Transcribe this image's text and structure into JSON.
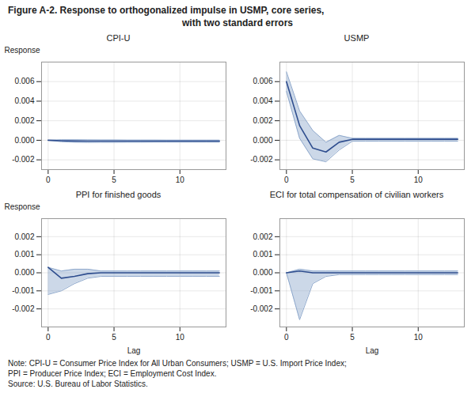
{
  "title": "Figure A-2. Response to orthogonalized impulse in USMP, core series,",
  "subtitle": "with two standard errors",
  "notes": [
    "Note: CPI-U = Consumer Price Index for All Urban Consumers; USMP = U.S. Import Price Index;",
    "PPI = Producer Price Index; ECI = Employment Cost Index.",
    "Source: U.S. Bureau of Labor Statistics."
  ],
  "chart_data": [
    {
      "type": "line",
      "title": "CPI-U",
      "ylabel": "Response",
      "grid": true,
      "x": [
        0,
        1,
        2,
        3,
        4,
        5,
        6,
        7,
        8,
        9,
        10,
        11,
        12,
        13
      ],
      "xlim": [
        -0.5,
        13.5
      ],
      "xticks": [
        0,
        5,
        10
      ],
      "ylim": [
        -0.003,
        0.008
      ],
      "yticks": [
        -0.002,
        {
          "value": 0,
          "label": "0.000"
        },
        0.002,
        0.004,
        0.006
      ],
      "series": [
        {
          "type": "area",
          "color": "#8ea8cc",
          "upper": [
            0.0,
            5e-05,
            5e-05,
            4e-05,
            3e-05,
            3e-05,
            2e-05,
            2e-05,
            2e-05,
            1e-05,
            1e-05,
            1e-05,
            1e-05,
            1e-05
          ],
          "lower": [
            0.0,
            -0.00015,
            -0.0002,
            -0.00022,
            -0.00021,
            -0.00021,
            -0.0002,
            -0.0002,
            -0.00019,
            -0.00019,
            -0.00019,
            -0.00019,
            -0.00019,
            -0.00019
          ]
        },
        {
          "type": "line",
          "color": "#2e4d8e",
          "values": [
            0.0,
            -5e-05,
            -8e-05,
            -9e-05,
            -9e-05,
            -9e-05,
            -9e-05,
            -9e-05,
            -9e-05,
            -9e-05,
            -9e-05,
            -9e-05,
            -9e-05,
            -9e-05
          ]
        }
      ]
    },
    {
      "type": "line",
      "title": "USMP",
      "grid": true,
      "x": [
        0,
        1,
        2,
        3,
        4,
        5,
        6,
        7,
        8,
        9,
        10,
        11,
        12,
        13
      ],
      "xlim": [
        -0.5,
        13.5
      ],
      "xticks": [
        0,
        5,
        10
      ],
      "ylim": [
        -0.003,
        0.008
      ],
      "yticks": [
        -0.002,
        {
          "value": 0,
          "label": "0.000"
        },
        0.002,
        0.004,
        0.006
      ],
      "series": [
        {
          "type": "area",
          "color": "#8ea8cc",
          "upper": [
            0.007,
            0.003,
            0.001,
            -0.0002,
            0.0005,
            0.0002,
            0.0002,
            0.0002,
            0.0002,
            0.0002,
            0.0002,
            0.0002,
            0.0002,
            0.0002
          ],
          "lower": [
            0.005,
            0.0002,
            -0.0019,
            -0.0022,
            -0.001,
            -0.0001,
            -0.0001,
            -0.0001,
            -0.0001,
            -0.0001,
            -0.0001,
            -0.0001,
            -0.0001,
            -0.0001
          ]
        },
        {
          "type": "line",
          "color": "#2e4d8e",
          "values": [
            0.006,
            0.0015,
            -0.0008,
            -0.0012,
            -0.0002,
            0.0001,
            0.0001,
            0.0001,
            0.0001,
            0.0001,
            0.0001,
            0.0001,
            0.0001,
            0.0001
          ]
        }
      ]
    },
    {
      "type": "line",
      "title": "PPI for finished goods",
      "ylabel": "Response",
      "xlabel": "Lag",
      "grid": true,
      "x": [
        0,
        1,
        2,
        3,
        4,
        5,
        6,
        7,
        8,
        9,
        10,
        11,
        12,
        13
      ],
      "xlim": [
        -0.5,
        13.5
      ],
      "xticks": [
        0,
        5,
        10
      ],
      "ylim": [
        -0.003,
        0.003
      ],
      "yticks": [
        -0.002,
        -0.001,
        {
          "value": 0,
          "label": "0.000"
        },
        0.001,
        0.002
      ],
      "series": [
        {
          "type": "area",
          "color": "#8ea8cc",
          "upper": [
            0.0003,
            0.0001,
            0.0002,
            0.0002,
            0.0001,
            0.0001,
            0.0001,
            0.0001,
            0.0001,
            0.0001,
            0.0001,
            0.0001,
            0.0001,
            0.0001
          ],
          "lower": [
            -0.0012,
            -0.001,
            -0.0006,
            -0.0003,
            -0.0002,
            -0.0002,
            -0.0002,
            -0.0002,
            -0.0002,
            -0.0002,
            -0.0002,
            -0.0002,
            -0.0002,
            -0.0002
          ]
        },
        {
          "type": "line",
          "color": "#2e4d8e",
          "values": [
            0.0003,
            -0.0003,
            -0.0002,
            -5e-05,
            0.0,
            0.0,
            0.0,
            0.0,
            0.0,
            0.0,
            0.0,
            0.0,
            0.0,
            0.0
          ]
        }
      ]
    },
    {
      "type": "line",
      "title": "ECI for total compensation of civilian workers",
      "xlabel": "Lag",
      "grid": true,
      "x": [
        0,
        1,
        2,
        3,
        4,
        5,
        6,
        7,
        8,
        9,
        10,
        11,
        12,
        13
      ],
      "xlim": [
        -0.5,
        13.5
      ],
      "xticks": [
        0,
        5,
        10
      ],
      "ylim": [
        -0.003,
        0.003
      ],
      "yticks": [
        -0.002,
        -0.001,
        {
          "value": 0,
          "label": "0.000"
        },
        0.001,
        0.002
      ],
      "series": [
        {
          "type": "area",
          "color": "#8ea8cc",
          "upper": [
            0.0,
            0.0002,
            0.0001,
            0.0001,
            0.0001,
            0.0001,
            0.0001,
            0.0001,
            0.0001,
            0.0001,
            0.0001,
            0.0001,
            0.0001,
            0.0001
          ],
          "lower": [
            0.0,
            -0.0026,
            -0.0006,
            -0.0002,
            -0.0001,
            -0.0001,
            -0.0001,
            -0.0001,
            -0.0001,
            -0.0001,
            -0.0001,
            -0.0001,
            -0.0001,
            -0.0001
          ]
        },
        {
          "type": "line",
          "color": "#2e4d8e",
          "values": [
            0.0,
            0.0001,
            0.0,
            0.0,
            0.0,
            0.0,
            0.0,
            0.0,
            0.0,
            0.0,
            0.0,
            0.0,
            0.0,
            0.0
          ]
        }
      ]
    }
  ]
}
